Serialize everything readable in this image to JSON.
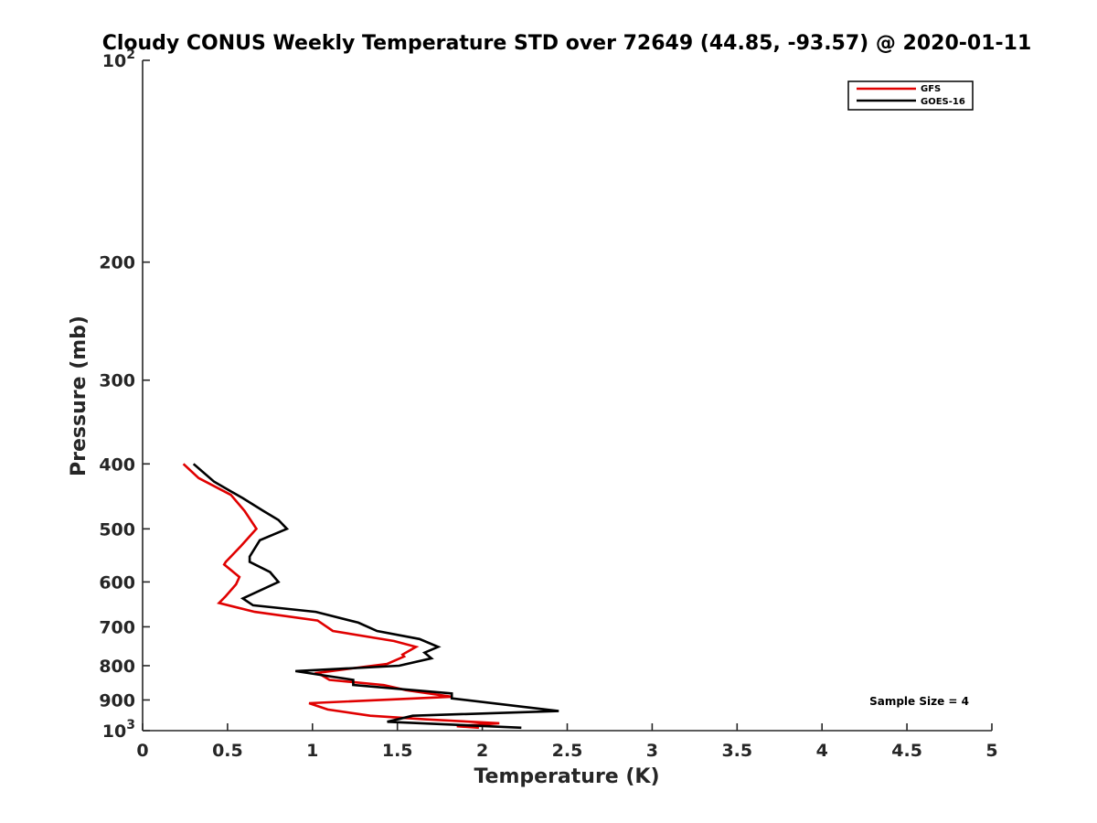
{
  "chart_data": {
    "type": "line",
    "title": "Cloudy CONUS Weekly Temperature STD over 72649 (44.85, -93.57) @ 2020-01-11",
    "xlabel": "Temperature (K)",
    "ylabel": "Pressure (mb)",
    "xlim": [
      0,
      5
    ],
    "ylim": [
      100,
      1000
    ],
    "y_scale": "log",
    "y_reversed": true,
    "grid": false,
    "legend_position": "top-right",
    "x_ticks": [
      {
        "value": 0,
        "label": "0"
      },
      {
        "value": 0.5,
        "label": "0.5"
      },
      {
        "value": 1,
        "label": "1"
      },
      {
        "value": 1.5,
        "label": "1.5"
      },
      {
        "value": 2,
        "label": "2"
      },
      {
        "value": 2.5,
        "label": "2.5"
      },
      {
        "value": 3,
        "label": "3"
      },
      {
        "value": 3.5,
        "label": "3.5"
      },
      {
        "value": 4,
        "label": "4"
      },
      {
        "value": 4.5,
        "label": "4.5"
      },
      {
        "value": 5,
        "label": "5"
      }
    ],
    "y_ticks": [
      {
        "value": 100,
        "base": "10",
        "exp": "2"
      },
      {
        "value": 200,
        "label": "200"
      },
      {
        "value": 300,
        "label": "300"
      },
      {
        "value": 400,
        "label": "400"
      },
      {
        "value": 500,
        "label": "500"
      },
      {
        "value": 600,
        "label": "600"
      },
      {
        "value": 700,
        "label": "700"
      },
      {
        "value": 800,
        "label": "800"
      },
      {
        "value": 900,
        "label": "900"
      },
      {
        "value": 1000,
        "base": "10",
        "exp": "3"
      }
    ],
    "series": [
      {
        "name": "GFS",
        "color": "#e00000",
        "points": [
          [
            0.24,
            400
          ],
          [
            0.33,
            420
          ],
          [
            0.52,
            445
          ],
          [
            0.6,
            470
          ],
          [
            0.67,
            500
          ],
          [
            0.58,
            530
          ],
          [
            0.49,
            560
          ],
          [
            0.48,
            565
          ],
          [
            0.57,
            590
          ],
          [
            0.55,
            605
          ],
          [
            0.49,
            630
          ],
          [
            0.45,
            645
          ],
          [
            0.66,
            665
          ],
          [
            1.03,
            685
          ],
          [
            1.12,
            710
          ],
          [
            1.48,
            735
          ],
          [
            1.61,
            750
          ],
          [
            1.53,
            770
          ],
          [
            1.54,
            775
          ],
          [
            1.44,
            795
          ],
          [
            1.03,
            820
          ],
          [
            1.1,
            840
          ],
          [
            1.42,
            855
          ],
          [
            1.55,
            870
          ],
          [
            1.82,
            890
          ],
          [
            0.98,
            910
          ],
          [
            1.09,
            930
          ],
          [
            1.34,
            950
          ],
          [
            1.67,
            962
          ],
          [
            2.1,
            975
          ],
          [
            1.85,
            985
          ],
          [
            1.98,
            990
          ]
        ]
      },
      {
        "name": "GOES-16",
        "color": "#000000",
        "points": [
          [
            0.3,
            400
          ],
          [
            0.42,
            425
          ],
          [
            0.59,
            450
          ],
          [
            0.71,
            470
          ],
          [
            0.8,
            485
          ],
          [
            0.85,
            500
          ],
          [
            0.69,
            520
          ],
          [
            0.63,
            550
          ],
          [
            0.63,
            560
          ],
          [
            0.75,
            580
          ],
          [
            0.8,
            600
          ],
          [
            0.59,
            635
          ],
          [
            0.65,
            650
          ],
          [
            1.02,
            665
          ],
          [
            1.27,
            690
          ],
          [
            1.38,
            710
          ],
          [
            1.63,
            730
          ],
          [
            1.74,
            750
          ],
          [
            1.66,
            765
          ],
          [
            1.7,
            780
          ],
          [
            1.51,
            800
          ],
          [
            0.9,
            815
          ],
          [
            1.24,
            840
          ],
          [
            1.24,
            855
          ],
          [
            1.82,
            880
          ],
          [
            1.82,
            895
          ],
          [
            2.45,
            935
          ],
          [
            1.59,
            950
          ],
          [
            1.44,
            970
          ],
          [
            2.23,
            990
          ]
        ]
      }
    ],
    "annotations": [
      "Sample Size = 4"
    ]
  }
}
